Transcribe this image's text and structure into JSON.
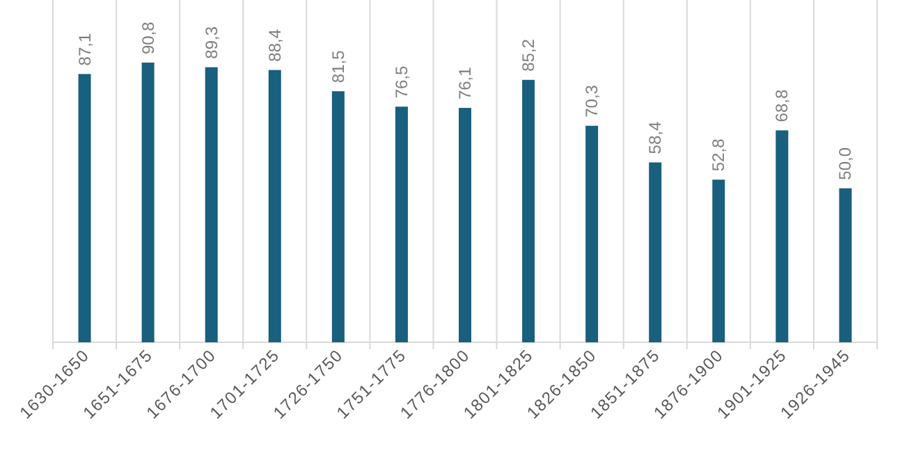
{
  "chart_data": {
    "type": "bar",
    "categories": [
      "1630-1650",
      "1651-1675",
      "1676-1700",
      "1701-1725",
      "1726-1750",
      "1751-1775",
      "1776-1800",
      "1801-1825",
      "1826-1850",
      "1851-1875",
      "1876-1900",
      "1901-1925",
      "1926-1945"
    ],
    "values": [
      87.1,
      90.8,
      89.3,
      88.4,
      81.5,
      76.5,
      76.1,
      85.2,
      70.3,
      58.4,
      52.8,
      68.8,
      50.0
    ],
    "value_labels": [
      "87,1",
      "90,8",
      "89,3",
      "88,4",
      "81,5",
      "76,5",
      "76,1",
      "85,2",
      "70,3",
      "58,4",
      "52,8",
      "68,8",
      "50,0"
    ],
    "color": "#195f7e",
    "grid": "x"
  }
}
